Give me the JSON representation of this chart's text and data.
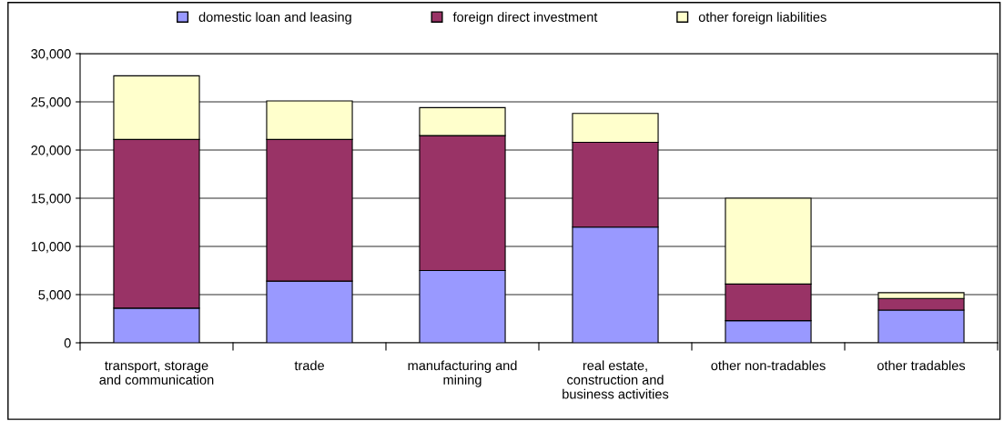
{
  "chart_data": {
    "type": "bar",
    "stacked": true,
    "categories": [
      "transport, storage\nand communication",
      "trade",
      "manufacturing and\nmining",
      "real estate,\nconstruction and\nbusiness activities",
      "other non-tradables",
      "other tradables"
    ],
    "series": [
      {
        "name": "domestic loan and leasing",
        "color": "#9999ff",
        "values": [
          3600,
          6400,
          7500,
          12000,
          2300,
          3400
        ]
      },
      {
        "name": "foreign direct investment",
        "color": "#993366",
        "values": [
          17500,
          14700,
          14000,
          8800,
          3800,
          1200
        ]
      },
      {
        "name": "other foreign liabilities",
        "color": "#ffffcc",
        "values": [
          6600,
          4000,
          2900,
          3000,
          8900,
          600
        ]
      }
    ],
    "ylim": [
      0,
      30000
    ],
    "yticks": [
      {
        "value": 0,
        "label": "0"
      },
      {
        "value": 5000,
        "label": "5,000"
      },
      {
        "value": 10000,
        "label": "10,000"
      },
      {
        "value": 15000,
        "label": "15,000"
      },
      {
        "value": 20000,
        "label": "20,000"
      },
      {
        "value": 25000,
        "label": "25,000"
      },
      {
        "value": 30000,
        "label": "30,000"
      }
    ],
    "grid": "y",
    "legend": "top"
  }
}
